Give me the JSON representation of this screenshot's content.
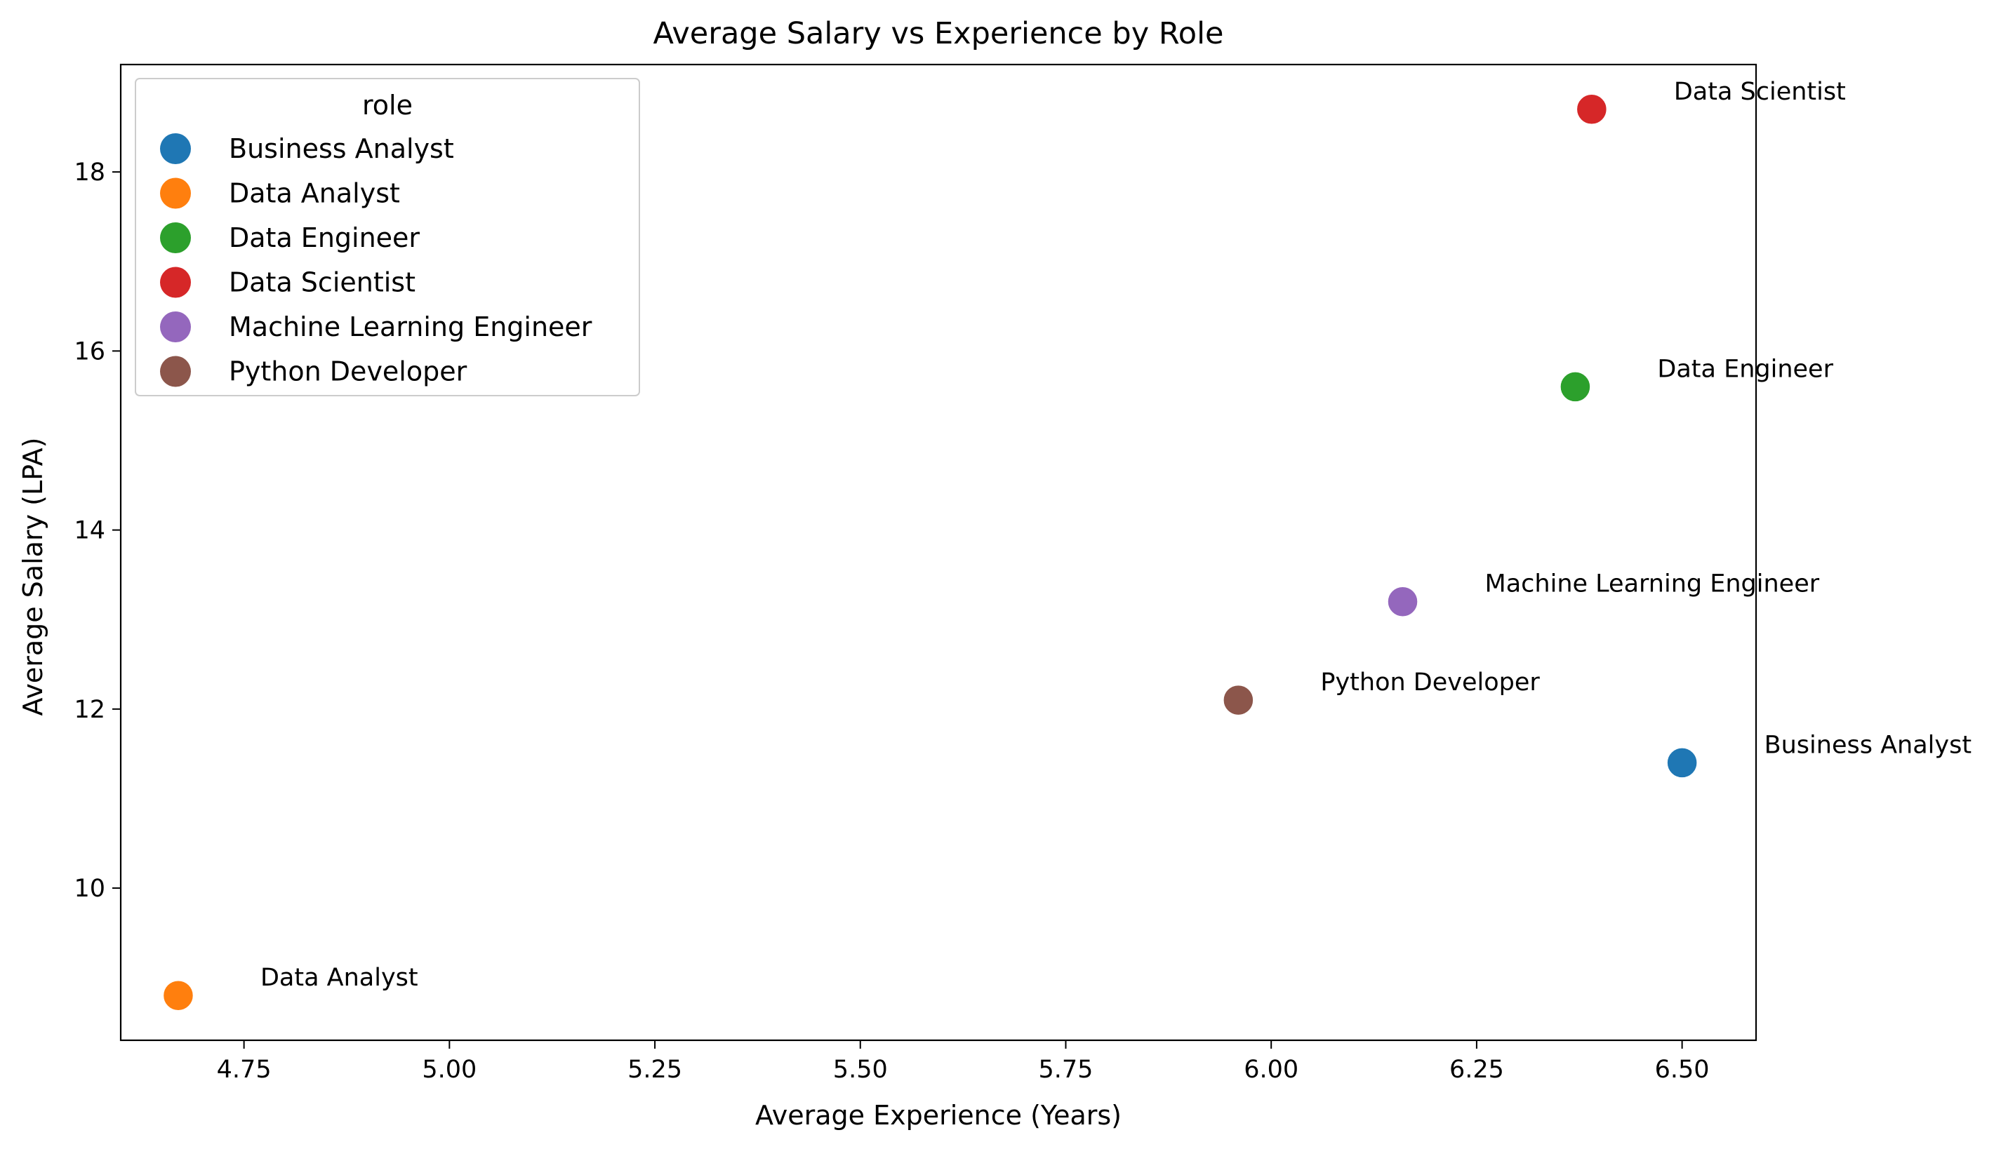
{
  "chart_data": {
    "type": "scatter",
    "title": "Average Salary vs Experience by Role",
    "xlabel": "Average Experience (Years)",
    "ylabel": "Average Salary (LPA)",
    "xlim": [
      4.6,
      6.59
    ],
    "ylim": [
      8.3,
      19.2
    ],
    "xticks": [
      "4.75",
      "5.00",
      "5.25",
      "5.50",
      "5.75",
      "6.00",
      "6.25",
      "6.50"
    ],
    "yticks": [
      "10",
      "12",
      "14",
      "16",
      "18"
    ],
    "grid": false,
    "legend": {
      "title": "role",
      "placement": "top-left"
    },
    "series": [
      {
        "name": "Business Analyst",
        "color": "#1f77b4",
        "x": 6.5,
        "y": 11.4
      },
      {
        "name": "Data Analyst",
        "color": "#ff7f0e",
        "x": 4.67,
        "y": 8.8
      },
      {
        "name": "Data Engineer",
        "color": "#2ca02c",
        "x": 6.37,
        "y": 15.6
      },
      {
        "name": "Data Scientist",
        "color": "#d62728",
        "x": 6.39,
        "y": 18.7
      },
      {
        "name": "Machine Learning Engineer",
        "color": "#9467bd",
        "x": 6.16,
        "y": 13.2
      },
      {
        "name": "Python Developer",
        "color": "#8c564b",
        "x": 5.96,
        "y": 12.1
      }
    ]
  }
}
